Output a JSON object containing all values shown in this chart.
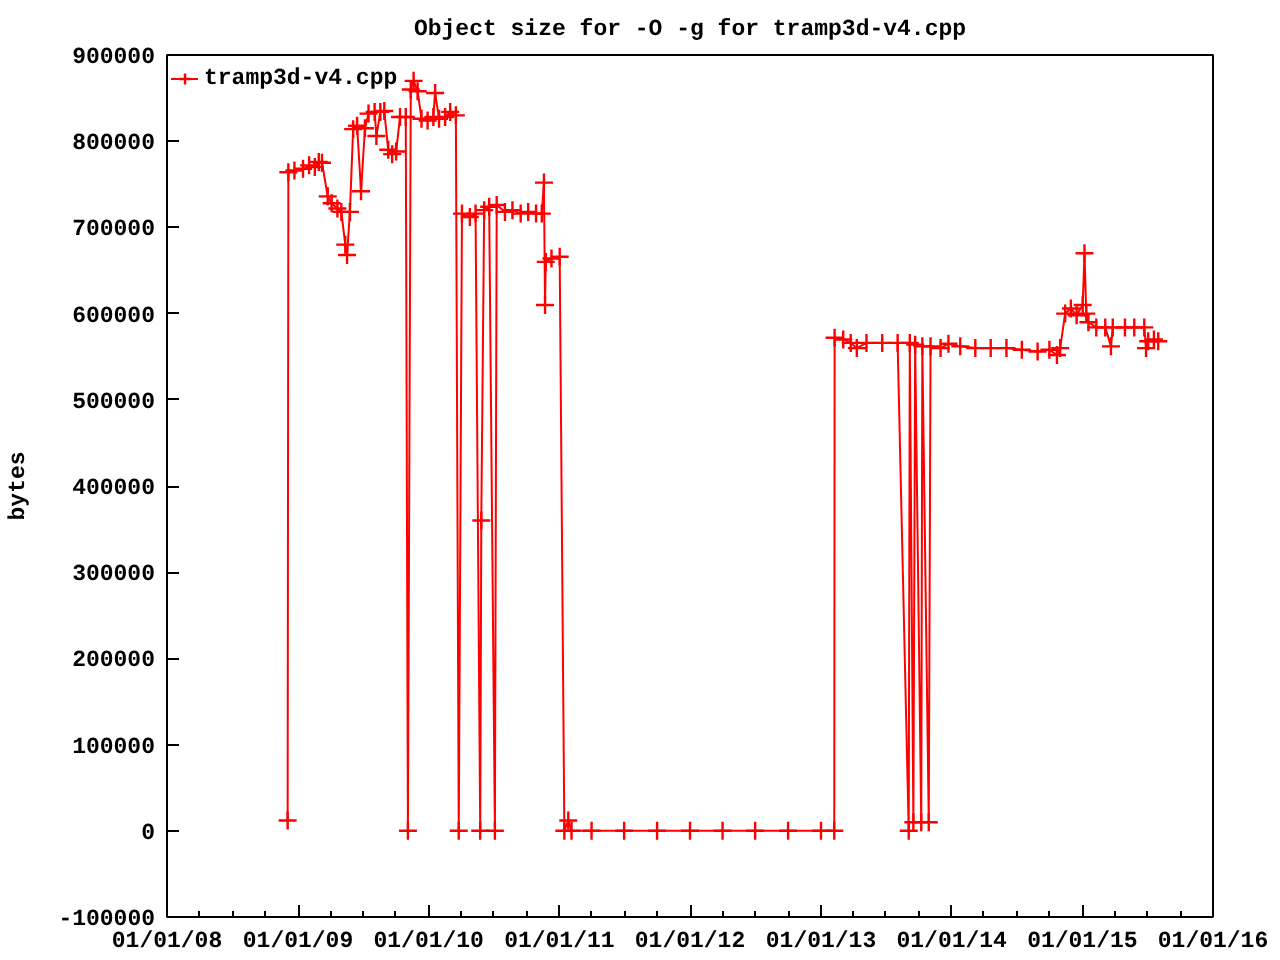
{
  "chart_data": {
    "type": "line",
    "title": "Object size for -O -g for tramp3d-v4.cpp",
    "ylabel": "bytes",
    "x": [
      "2008-12-03",
      "2008-12-05",
      "2008-12-22",
      "2009-01-15",
      "2009-02-01",
      "2009-02-17",
      "2009-02-28",
      "2009-03-09",
      "2009-03-25",
      "2009-04-05",
      "2009-04-21",
      "2009-05-02",
      "2009-05-13",
      "2009-05-18",
      "2009-05-26",
      "2009-06-04",
      "2009-06-15",
      "2009-06-26",
      "2009-07-07",
      "2009-07-17",
      "2009-08-03",
      "2009-08-08",
      "2009-08-19",
      "2009-08-30",
      "2009-09-10",
      "2009-09-21",
      "2009-10-02",
      "2009-10-13",
      "2009-10-29",
      "2009-11-04",
      "2009-11-12",
      "2009-11-20",
      "2009-12-01",
      "2009-12-12",
      "2009-12-29",
      "2010-01-14",
      "2010-01-19",
      "2010-01-30",
      "2010-02-16",
      "2010-03-02",
      "2010-03-18",
      "2010-03-26",
      "2010-04-04",
      "2010-04-26",
      "2010-05-12",
      "2010-05-25",
      "2010-05-28",
      "2010-06-05",
      "2010-06-19",
      "2010-07-05",
      "2010-07-10",
      "2010-08-02",
      "2010-08-23",
      "2010-09-15",
      "2010-10-06",
      "2010-10-28",
      "2010-11-13",
      "2010-11-19",
      "2010-11-22",
      "2010-11-24",
      "2010-12-10",
      "2011-01-02",
      "2011-01-15",
      "2011-01-26",
      "2011-02-04",
      "2011-04-01",
      "2011-07-01",
      "2011-10-01",
      "2012-01-01",
      "2012-04-01",
      "2012-07-01",
      "2012-10-01",
      "2013-01-01",
      "2013-02-07",
      "2013-02-08",
      "2013-03-04",
      "2013-03-25",
      "2013-04-11",
      "2013-05-08",
      "2013-06-21",
      "2013-08-03",
      "2013-09-03",
      "2013-09-06",
      "2013-09-16",
      "2013-09-21",
      "2013-10-08",
      "2013-10-11",
      "2013-10-29",
      "2013-11-03",
      "2013-12-01",
      "2013-12-23",
      "2014-01-25",
      "2014-03-08",
      "2014-04-20",
      "2014-06-03",
      "2014-07-16",
      "2014-08-29",
      "2014-10-01",
      "2014-10-22",
      "2014-10-31",
      "2014-11-14",
      "2014-11-30",
      "2014-12-16",
      "2015-01-02",
      "2015-01-07",
      "2015-01-12",
      "2015-01-18",
      "2015-02-09",
      "2015-03-06",
      "2015-03-22",
      "2015-03-27",
      "2015-04-30",
      "2015-05-26",
      "2015-06-23",
      "2015-06-28",
      "2015-07-04",
      "2015-07-20",
      "2015-08-01"
    ],
    "series": [
      {
        "name": "tramp3d-v4.cpp",
        "color": "#ff0000",
        "values": [
          12000,
          764000,
          766000,
          768000,
          772000,
          770000,
          776000,
          775000,
          736000,
          728000,
          722000,
          718000,
          680000,
          668000,
          718000,
          814000,
          818000,
          742000,
          815000,
          832000,
          834000,
          806000,
          834000,
          835000,
          790000,
          785000,
          788000,
          828000,
          828000,
          0,
          860000,
          870000,
          858000,
          826000,
          824000,
          828000,
          856000,
          826000,
          828000,
          834000,
          830000,
          0,
          716000,
          712000,
          716000,
          0,
          360000,
          720000,
          724000,
          0,
          726000,
          718000,
          720000,
          716000,
          718000,
          716000,
          716000,
          752000,
          610000,
          660000,
          664000,
          666000,
          0,
          12000,
          0,
          0,
          0,
          0,
          0,
          0,
          0,
          0,
          0,
          0,
          572000,
          570000,
          566000,
          560000,
          566000,
          566000,
          566000,
          0,
          566000,
          10000,
          564000,
          10000,
          562000,
          10000,
          562000,
          560000,
          565000,
          562000,
          560000,
          560000,
          560000,
          558000,
          556000,
          558000,
          552000,
          560000,
          600000,
          606000,
          598000,
          610000,
          670000,
          600000,
          590000,
          584000,
          584000,
          562000,
          584000,
          584000,
          584000,
          584000,
          560000,
          568000,
          570000,
          568000
        ]
      }
    ],
    "xlim": [
      "2008-01-01",
      "2016-01-01"
    ],
    "xticks": [
      {
        "value": "2008-01-01",
        "label": "01/01/08"
      },
      {
        "value": "2008-04-01",
        "label": null
      },
      {
        "value": "2008-07-01",
        "label": null
      },
      {
        "value": "2008-10-01",
        "label": null
      },
      {
        "value": "2009-01-01",
        "label": "01/01/09"
      },
      {
        "value": "2009-04-01",
        "label": null
      },
      {
        "value": "2009-07-01",
        "label": null
      },
      {
        "value": "2009-10-01",
        "label": null
      },
      {
        "value": "2010-01-01",
        "label": "01/01/10"
      },
      {
        "value": "2010-04-01",
        "label": null
      },
      {
        "value": "2010-07-01",
        "label": null
      },
      {
        "value": "2010-10-01",
        "label": null
      },
      {
        "value": "2011-01-01",
        "label": "01/01/11"
      },
      {
        "value": "2011-04-01",
        "label": null
      },
      {
        "value": "2011-07-01",
        "label": null
      },
      {
        "value": "2011-10-01",
        "label": null
      },
      {
        "value": "2012-01-01",
        "label": "01/01/12"
      },
      {
        "value": "2012-04-01",
        "label": null
      },
      {
        "value": "2012-07-01",
        "label": null
      },
      {
        "value": "2012-10-01",
        "label": null
      },
      {
        "value": "2013-01-01",
        "label": "01/01/13"
      },
      {
        "value": "2013-04-01",
        "label": null
      },
      {
        "value": "2013-07-01",
        "label": null
      },
      {
        "value": "2013-10-01",
        "label": null
      },
      {
        "value": "2014-01-01",
        "label": "01/01/14"
      },
      {
        "value": "2014-04-01",
        "label": null
      },
      {
        "value": "2014-07-01",
        "label": null
      },
      {
        "value": "2014-10-01",
        "label": null
      },
      {
        "value": "2015-01-01",
        "label": "01/01/15"
      },
      {
        "value": "2015-04-01",
        "label": null
      },
      {
        "value": "2015-07-01",
        "label": null
      },
      {
        "value": "2015-10-01",
        "label": null
      },
      {
        "value": "2016-01-01",
        "label": "01/01/16"
      }
    ],
    "ylim": [
      -100000,
      900000
    ],
    "yticks": [
      -100000,
      0,
      100000,
      200000,
      300000,
      400000,
      500000,
      600000,
      700000,
      800000,
      900000
    ],
    "legend": "top left",
    "marker": "cross",
    "line_style": "solid"
  }
}
